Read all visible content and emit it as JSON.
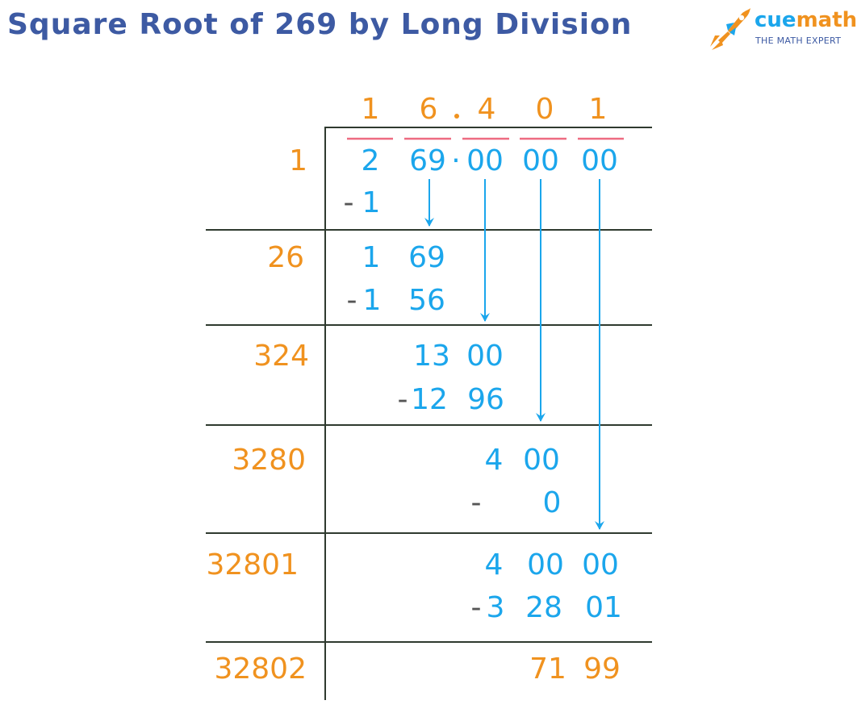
{
  "title": "Square Root of 269 by Long Division",
  "colors": {
    "title": "#3D5AA3",
    "quotient": "#F0921F",
    "digits": "#1BA6EC",
    "pair_bar": "#EE6C82",
    "rule": "#2F3A2F",
    "minus": "#555555"
  },
  "logo": {
    "icon": "rocket-icon",
    "brand_prefix": "cue",
    "brand_suffix": "math",
    "tagline": "THE MATH EXPERT"
  },
  "quotient": [
    "1",
    "6",
    ".",
    "4",
    "0",
    "1"
  ],
  "dividend": {
    "first": "2",
    "second": "69",
    "point": "·",
    "third": "00",
    "fourth": "00",
    "fifth": "00"
  },
  "divisors": [
    "1",
    "26",
    "324",
    "3280",
    "32801",
    "32802"
  ],
  "steps": {
    "s1_sub": "1",
    "s2_a": "1",
    "s2_b": "69",
    "s2_sub_a": "1",
    "s2_sub_b": "56",
    "s3_a": "13",
    "s3_b": "00",
    "s3_sub_a": "12",
    "s3_sub_b": "96",
    "s4_a": "4",
    "s4_b": "00",
    "s4_sub": "0",
    "s5_a": "4",
    "s5_b": "00",
    "s5_c": "00",
    "s5_sub_a": "3",
    "s5_sub_b": "28",
    "s5_sub_c": "01",
    "remainder_a": "71",
    "remainder_b": "99"
  },
  "minus_sign": "-"
}
